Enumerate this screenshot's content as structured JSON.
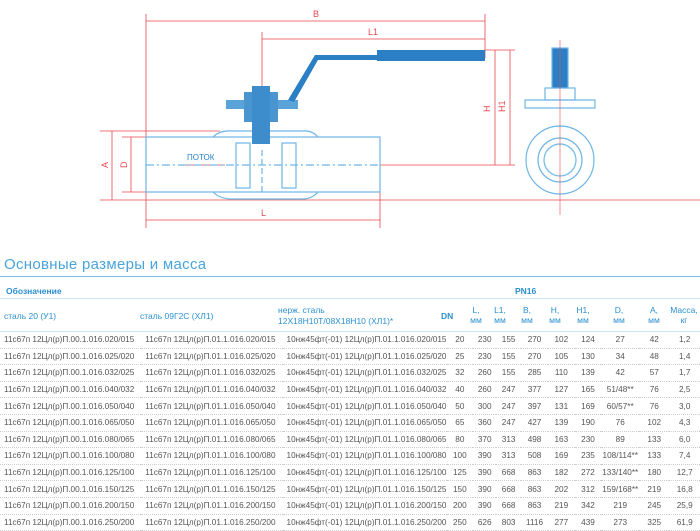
{
  "diagram": {
    "labels": {
      "B": "B",
      "L1": "L1",
      "H": "H",
      "H1": "H1",
      "A": "A",
      "D": "D",
      "L": "L",
      "flow": "ПОТОК"
    },
    "colors": {
      "valve": "#2b7fc4",
      "outline": "#6fb6e6",
      "dimension": "#e8474f"
    }
  },
  "section_title": "Основные размеры и масса",
  "table": {
    "group_header": "Обозначение",
    "pressure_header": "PN16",
    "columns": {
      "steel20": "сталь 20 (У1)",
      "steel09": "сталь 09Г2С (ХЛ1)",
      "stainless_1": "нерж. сталь",
      "stainless_2": "12Х18Н10Т/08Х18Н10 (ХЛ1)*",
      "dn": "DN",
      "L": [
        "L,",
        "мм"
      ],
      "L1": [
        "L1,",
        "мм"
      ],
      "B": [
        "B,",
        "мм"
      ],
      "H": [
        "H,",
        "мм"
      ],
      "H1": [
        "H1,",
        "мм"
      ],
      "D": [
        "D,",
        "мм"
      ],
      "A": [
        "A,",
        "мм"
      ],
      "mass": [
        "Масса,",
        "кг"
      ]
    },
    "rows": [
      [
        "11с67п 12Цл(р)П.00.1.016.020/015",
        "11с67п 12Цл(р)П.01.1.016.020/015",
        "10нж45фт(-01) 12Цл(р)П.01.1.016.020/015",
        "20",
        "230",
        "155",
        "270",
        "102",
        "124",
        "27",
        "42",
        "1,2"
      ],
      [
        "11с67п 12Цл(р)П.00.1.016.025/020",
        "11с67п 12Цл(р)П.01.1.016.025/020",
        "10нж45фт(-01) 12Цл(р)П.01.1.016.025/020",
        "25",
        "230",
        "155",
        "270",
        "105",
        "130",
        "34",
        "48",
        "1,4"
      ],
      [
        "11с67п 12Цл(р)П.00.1.016.032/025",
        "11с67п 12Цл(р)П.01.1.016.032/025",
        "10нж45фт(-01) 12Цл(р)П.01.1.016.032/025",
        "32",
        "260",
        "155",
        "285",
        "110",
        "139",
        "42",
        "57",
        "1,7"
      ],
      [
        "11с67п 12Цл(р)П.00.1.016.040/032",
        "11с67п 12Цл(р)П.01.1.016.040/032",
        "10нж45фт(-01) 12Цл(р)П.01.1.016.040/032",
        "40",
        "260",
        "247",
        "377",
        "127",
        "165",
        "51/48**",
        "76",
        "2,5"
      ],
      [
        "11с67п 12Цл(р)П.00.1.016.050/040",
        "11с67п 12Цл(р)П.01.1.016.050/040",
        "10нж45фт(-01) 12Цл(р)П.01.1.016.050/040",
        "50",
        "300",
        "247",
        "397",
        "131",
        "169",
        "60/57**",
        "76",
        "3,0"
      ],
      [
        "11с67п 12Цл(р)П.00.1.016.065/050",
        "11с67п 12Цл(р)П.01.1.016.065/050",
        "10нж45фт(-01) 12Цл(р)П.01.1.016.065/050",
        "65",
        "360",
        "247",
        "427",
        "139",
        "190",
        "76",
        "102",
        "4,3"
      ],
      [
        "11с67п 12Цл(р)П.00.1.016.080/065",
        "11с67п 12Цл(р)П.01.1.016.080/065",
        "10нж45фт(-01) 12Цл(р)П.01.1.016.080/065",
        "80",
        "370",
        "313",
        "498",
        "163",
        "230",
        "89",
        "133",
        "6,0"
      ],
      [
        "11с67п 12Цл(р)П.00.1.016.100/080",
        "11с67п 12Цл(р)П.01.1.016.100/080",
        "10нж45фт(-01) 12Цл(р)П.01.1.016.100/080",
        "100",
        "390",
        "313",
        "508",
        "169",
        "235",
        "108/114**",
        "133",
        "7,4"
      ],
      [
        "11с67п 12Цл(р)П.00.1.016.125/100",
        "11с67п 12Цл(р)П.01.1.016.125/100",
        "10нж45фт(-01) 12Цл(р)П.01.1.016.125/100",
        "125",
        "390",
        "668",
        "863",
        "182",
        "272",
        "133/140**",
        "180",
        "12,7"
      ],
      [
        "11с67п 12Цл(р)П.00.1.016.150/125",
        "11с67п 12Цл(р)П.01.1.016.150/125",
        "10нж45фт(-01) 12Цл(р)П.01.1.016.150/125",
        "150",
        "390",
        "668",
        "863",
        "202",
        "312",
        "159/168**",
        "219",
        "16,8"
      ],
      [
        "11с67п 12Цл(р)П.00.1.016.200/150",
        "11с67п 12Цл(р)П.01.1.016.200/150",
        "10нж45фт(-01) 12Цл(р)П.01.1.016.200/150",
        "200",
        "390",
        "668",
        "863",
        "219",
        "342",
        "219",
        "245",
        "25,9"
      ],
      [
        "11с67п 12Цл(р)П.00.1.016.250/200",
        "11с67п 12Цл(р)П.01.1.016.250/200",
        "10нж45фт(-01) 12Цл(р)П.01.1.016.250/200",
        "250",
        "626",
        "803",
        "1116",
        "277",
        "439",
        "273",
        "325",
        "61,9"
      ]
    ]
  }
}
